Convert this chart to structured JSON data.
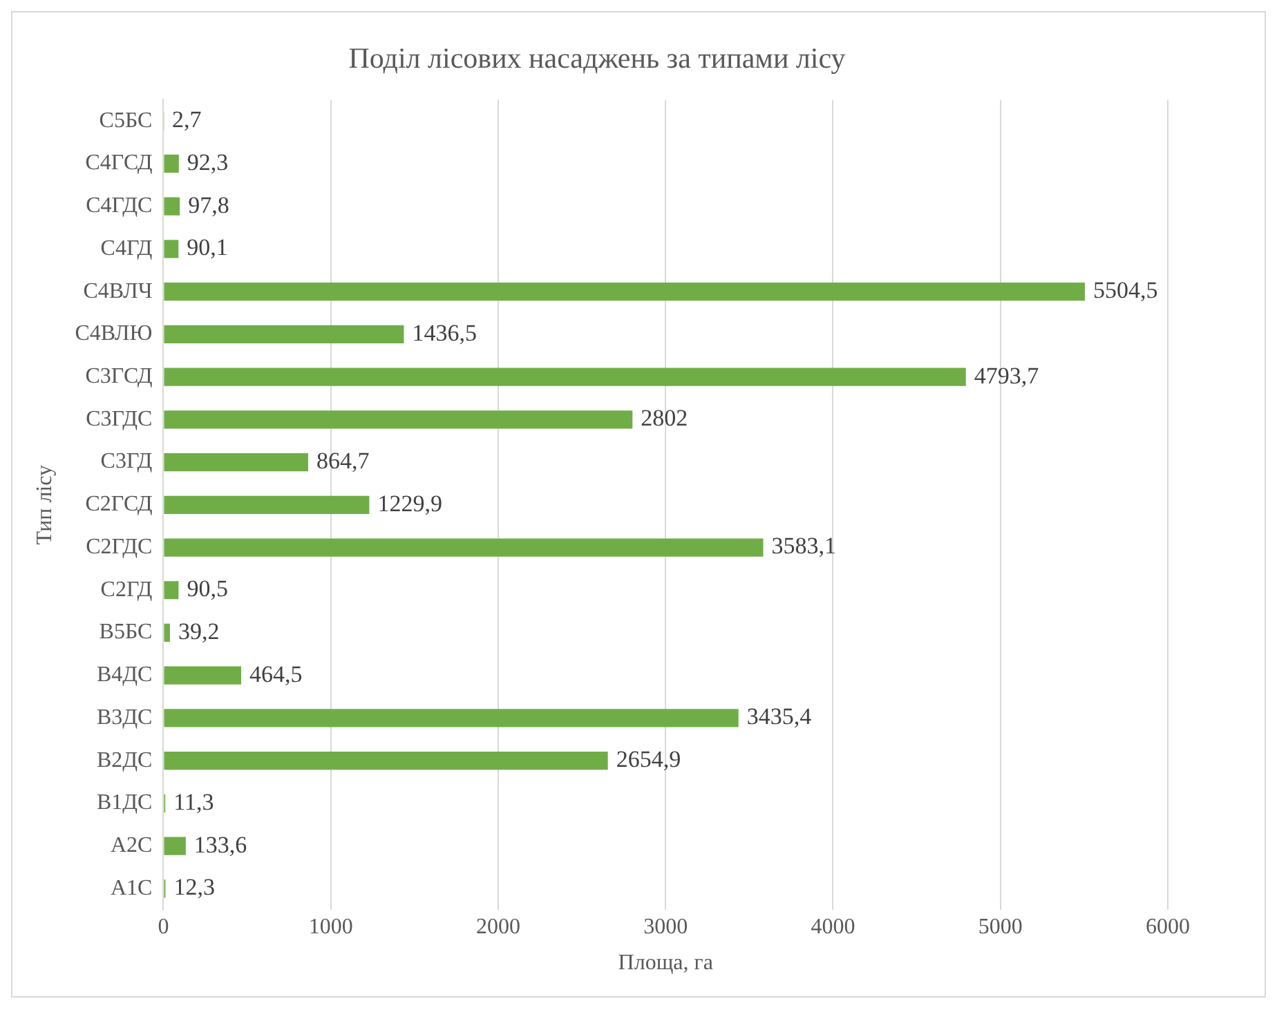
{
  "chart_data": {
    "type": "bar",
    "orientation": "horizontal",
    "title": "Поділ лісових насаджень за типами лісу",
    "xlabel": "Площа, га",
    "ylabel": "Тип лісу",
    "categories": [
      "С5БС",
      "С4ГСД",
      "С4ГДС",
      "С4ГД",
      "С4ВЛЧ",
      "С4ВЛЮ",
      "С3ГСД",
      "С3ГДС",
      "С3ГД",
      "С2ГСД",
      "С2ГДС",
      "С2ГД",
      "В5БС",
      "В4ДС",
      "В3ДС",
      "В2ДС",
      "В1ДС",
      "А2С",
      "А1С"
    ],
    "values": [
      2.7,
      92.3,
      97.8,
      90.1,
      5504.5,
      1436.5,
      4793.7,
      2802,
      864.7,
      1229.9,
      3583.1,
      90.5,
      39.2,
      464.5,
      3435.4,
      2654.9,
      11.3,
      133.6,
      12.3
    ],
    "value_labels": [
      "2,7",
      "92,3",
      "97,8",
      "90,1",
      "5504,5",
      "1436,5",
      "4793,7",
      "2802",
      "864,7",
      "1229,9",
      "3583,1",
      "90,5",
      "39,2",
      "464,5",
      "3435,4",
      "2654,9",
      "11,3",
      "133,6",
      "12,3"
    ],
    "color": "#70ad47",
    "xlim": [
      0,
      6000
    ],
    "xticks": [
      0,
      1000,
      2000,
      3000,
      4000,
      5000,
      6000
    ],
    "grid": "x",
    "legend": false
  }
}
